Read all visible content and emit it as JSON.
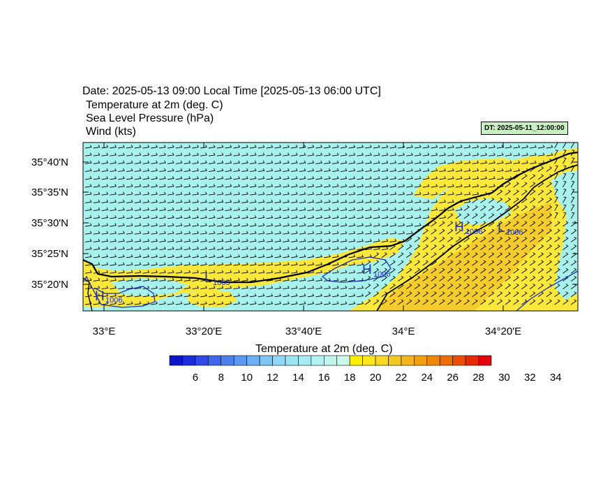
{
  "title": {
    "date_line": "Date: 2025-05-13  09:00 Local Time [2025-05-13  06:00 UTC]",
    "fields": [
      "Temperature at 2m   (deg. C)",
      "Sea Level Pressure   (hPa)",
      "Wind   (kts)"
    ]
  },
  "dt_badge": "DT: 2025-05-11_12:00:00",
  "map": {
    "lon_ticks": [
      "33°E",
      "33°20'E",
      "33°40'E",
      "34°E",
      "34°20'E"
    ],
    "lat_ticks": [
      "35°40'N",
      "35°35'N",
      "35°30'N",
      "35°25'N",
      "35°20'N"
    ],
    "pressure_centers": [
      {
        "type": "H",
        "value": "1006",
        "lon_approx": 32.96,
        "lat_approx": 35.31
      },
      {
        "type": "L",
        "value": "1005",
        "lon_approx": 33.21,
        "lat_approx": 35.33
      },
      {
        "type": "H",
        "value": "1006",
        "lon_approx": 33.83,
        "lat_approx": 35.37
      },
      {
        "type": "H",
        "value": "1006",
        "lon_approx": 34.11,
        "lat_approx": 35.49
      },
      {
        "type": "L",
        "value": "1006",
        "lon_approx": 34.3,
        "lat_approx": 35.48
      }
    ],
    "colors": {
      "sea_cyan": "#a8f2ee",
      "land_yellow": "#fbe83a",
      "land_gold": "#f5cc2c",
      "coast": "#000000",
      "isobar": "#1c2fc0"
    }
  },
  "colorbar": {
    "title": "Temperature at 2m  (deg. C)",
    "labels": [
      "6",
      "8",
      "10",
      "12",
      "14",
      "16",
      "18",
      "20",
      "22",
      "24",
      "26",
      "28",
      "30",
      "32",
      "34"
    ],
    "colors": [
      "#0a16c8",
      "#1a2ee0",
      "#2f4ae8",
      "#3f66ec",
      "#4d80ee",
      "#5b98f0",
      "#6bb0f4",
      "#7cc6f6",
      "#8cd8f6",
      "#9ae4f4",
      "#a6ecf2",
      "#b2f2f0",
      "#beF6ee",
      "#caf8ec",
      "#fcf000",
      "#fce61a",
      "#f8d820",
      "#f4c824",
      "#f4b41c",
      "#f2a010",
      "#f08806",
      "#ee6c04",
      "#ea4e04",
      "#e62c06",
      "#e4000c"
    ]
  }
}
